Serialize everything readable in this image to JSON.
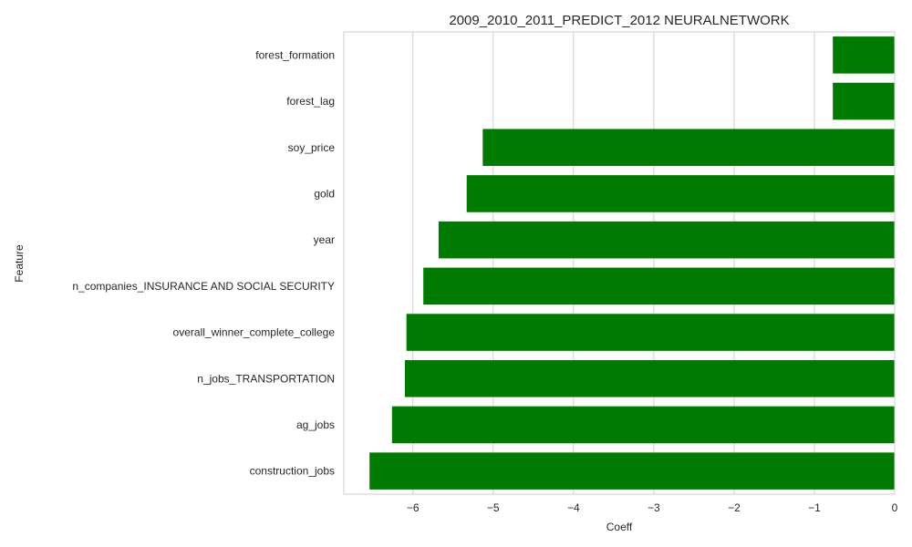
{
  "chart_data": {
    "type": "bar",
    "orientation": "horizontal",
    "title": "2009_2010_2011_PREDICT_2012 NEURALNETWORK",
    "xlabel": "Coeff",
    "ylabel": "Feature",
    "categories": [
      "forest_formation",
      "forest_lag",
      "soy_price",
      "gold",
      "year",
      "n_companies_INSURANCE AND SOCIAL SECURITY",
      "overall_winner_complete_college",
      "n_jobs_TRANSPORTATION",
      "ag_jobs",
      "construction_jobs"
    ],
    "values": [
      -0.77,
      -0.77,
      -5.13,
      -5.33,
      -5.68,
      -5.87,
      -6.08,
      -6.1,
      -6.26,
      -6.54
    ],
    "xlim": [
      -6.86,
      0
    ],
    "xticks": [
      -6,
      -5,
      -4,
      -3,
      -2,
      -1,
      0
    ],
    "xtick_labels": [
      "−6",
      "−5",
      "−4",
      "−3",
      "−2",
      "−1",
      "0"
    ],
    "grid": "vertical",
    "bar_color": "#007a00"
  }
}
